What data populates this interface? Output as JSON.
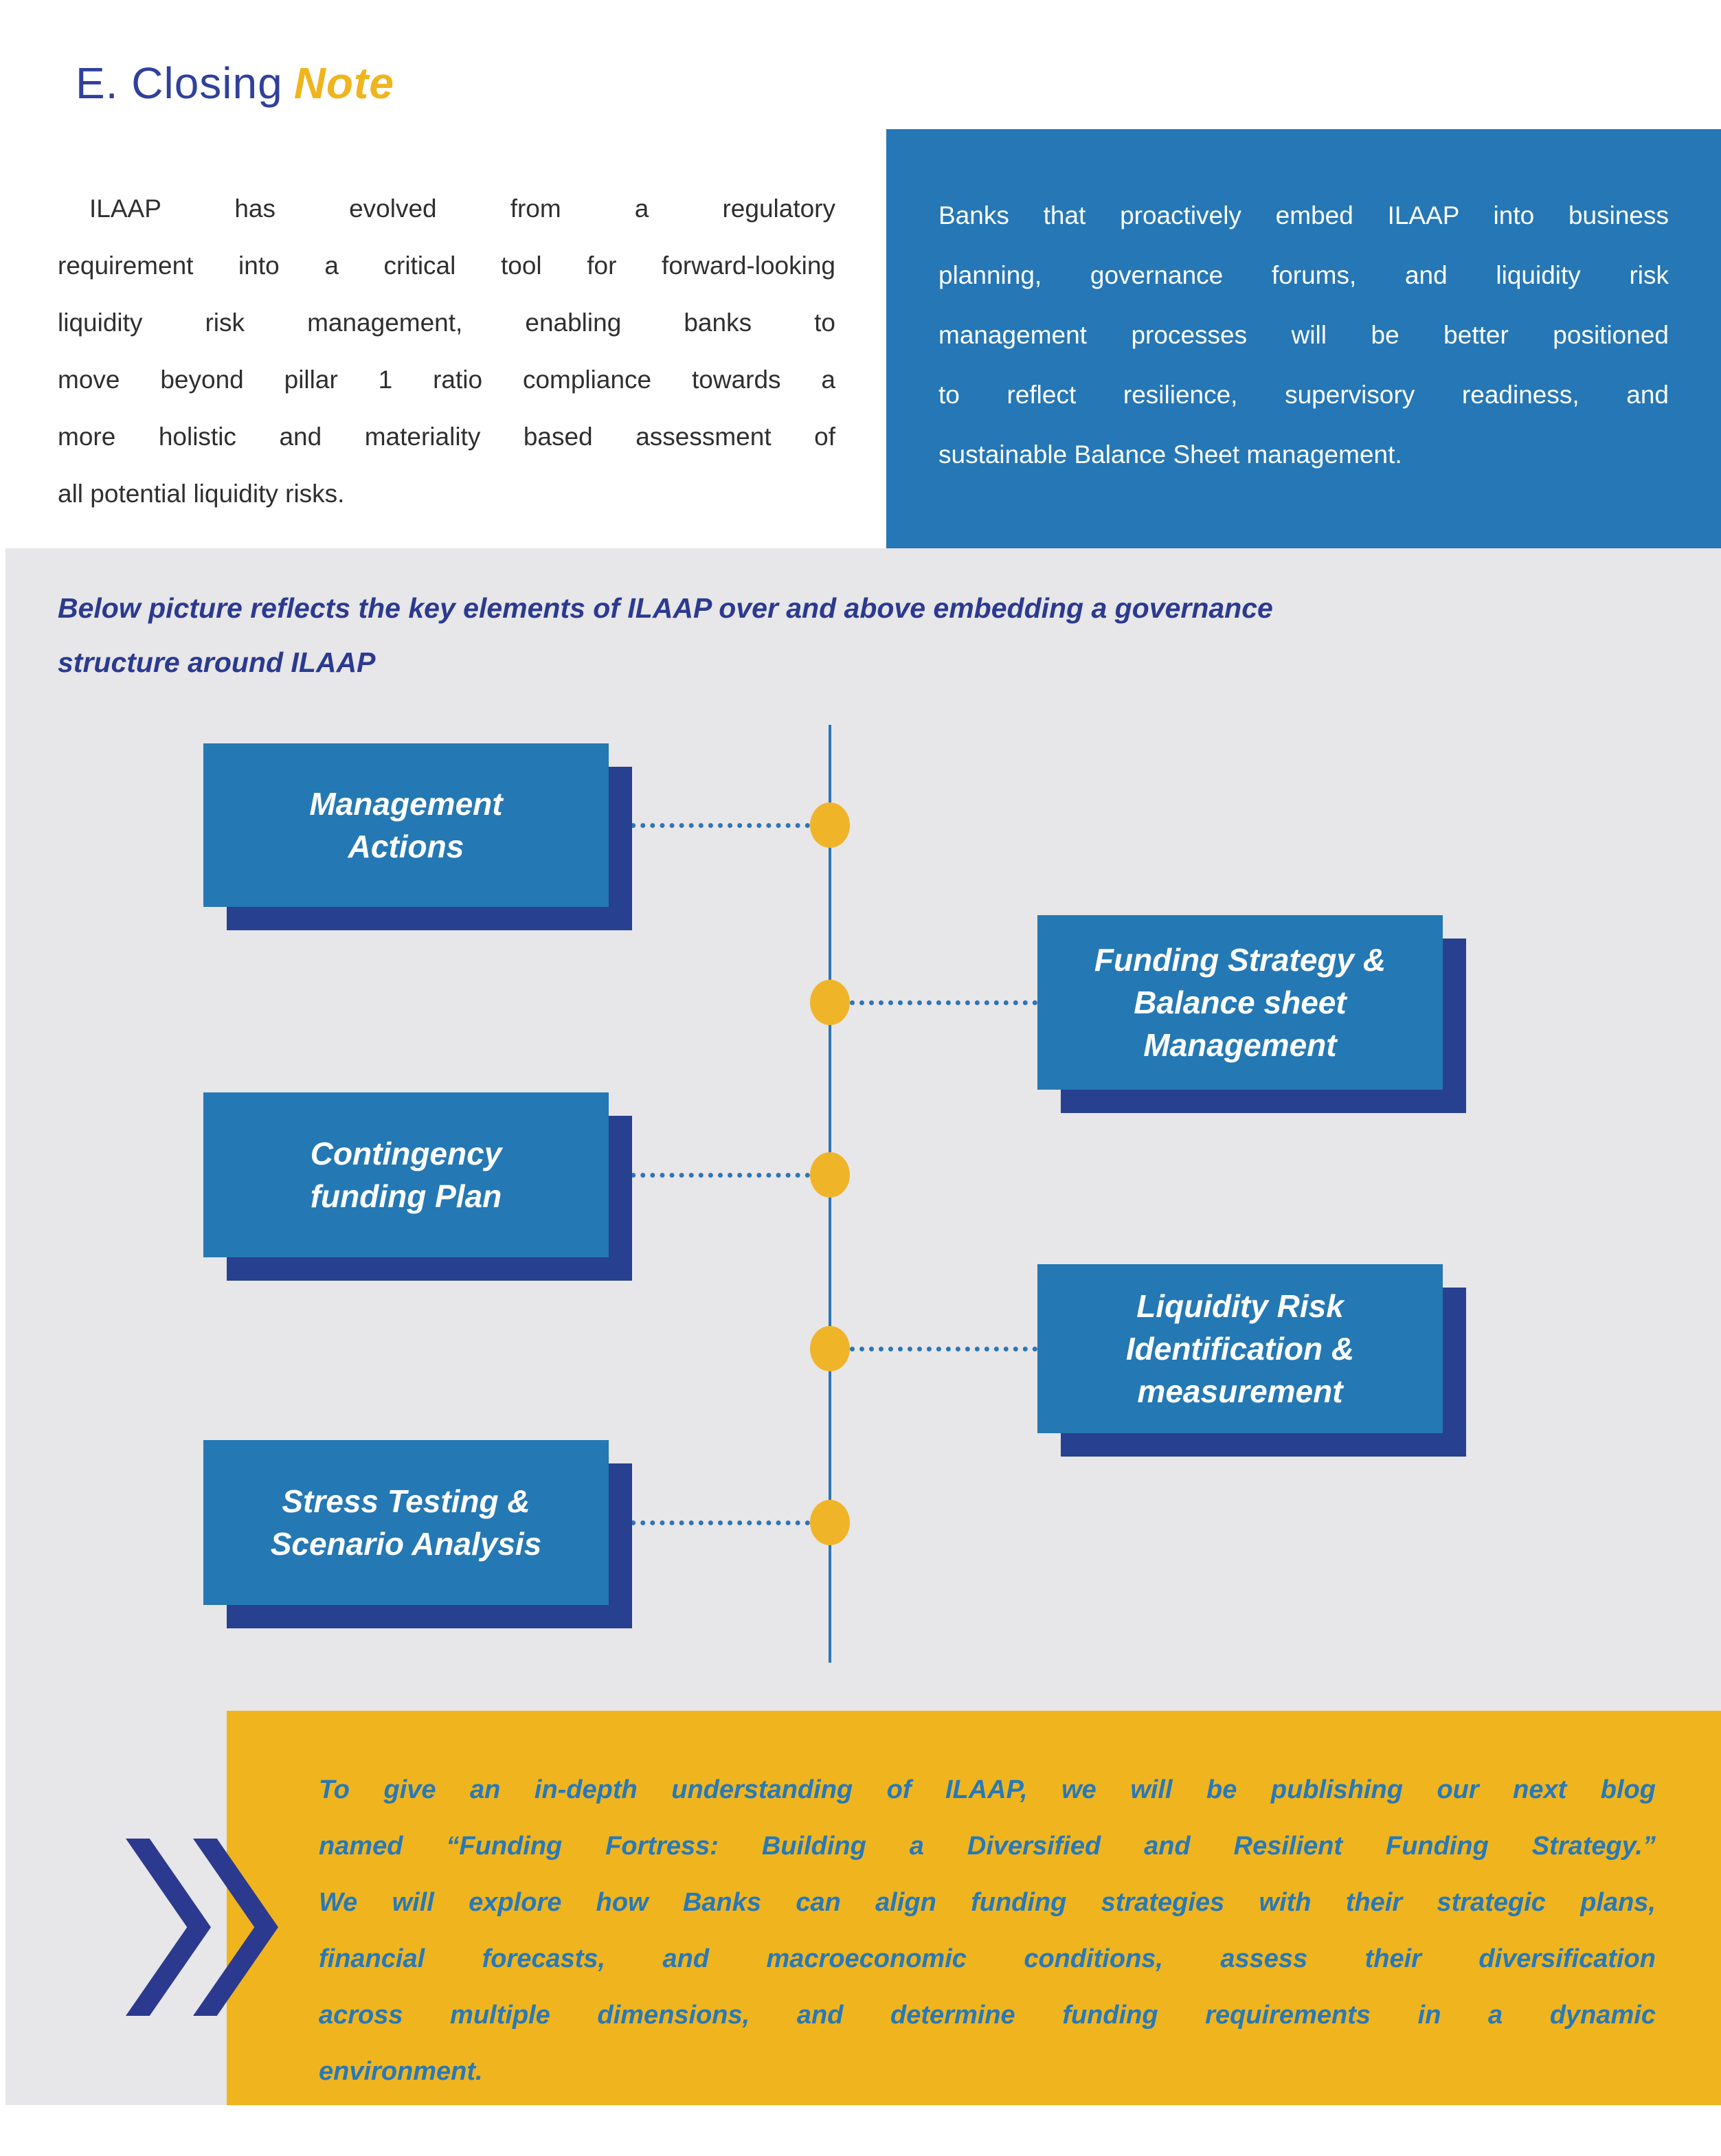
{
  "title": {
    "main": "E. Closing",
    "accent": "Note"
  },
  "intro": {
    "paragraph_lines": "ILAAP has evolved from a regulatory\nrequirement into a critical tool for forward-looking\nliquidity risk management, enabling banks to\nmove beyond pillar 1 ratio compliance towards a\nmore holistic and materiality based assessment of",
    "paragraph_last": "all potential liquidity risks.",
    "callout_lines": "Banks that proactively embed ILAAP into business\nplanning, governance forums, and liquidity risk\nmanagement processes will be better positioned\nto reflect resilience, supervisory readiness, and",
    "callout_last": "sustainable Balance Sheet management."
  },
  "section": {
    "heading": "Below picture reflects the key elements of ILAAP over and above embedding a governance\nstructure around ILAAP"
  },
  "timeline": {
    "items": [
      {
        "label": "Management\nActions",
        "side": "left"
      },
      {
        "label": "Funding Strategy &\nBalance sheet\nManagement",
        "side": "right"
      },
      {
        "label": "Contingency\nfunding Plan",
        "side": "left"
      },
      {
        "label": "Liquidity Risk\nIdentification &\nmeasurement",
        "side": "right"
      },
      {
        "label": "Stress Testing &\nScenario Analysis",
        "side": "left"
      }
    ]
  },
  "footer": {
    "note_lines": "To give an in-depth understanding of ILAAP, we will be publishing our next blog\nnamed “Funding Fortress: Building a Diversified and Resilient Funding Strategy.”\nWe will explore how Banks can align funding strategies with their strategic plans,\nfinancial forecasts, and macroeconomic conditions, assess their diversification\nacross multiple dimensions, and determine funding requirements in a dynamic",
    "note_last": "environment.",
    "chevron_icon": "double-chevron-right"
  },
  "colors": {
    "title_blue": "#30409c",
    "accent_gold": "#f0b41e",
    "callout_blue": "#2577b5",
    "box_blue": "#2478b4",
    "shadow_navy": "#27408f",
    "heading_navy": "#2b3a8f",
    "node_gold": "#f0b429",
    "footer_gold": "#f0b41f",
    "connector_blue": "#2e75b6",
    "section_gray": "#e7e6e8",
    "body_text": "#2f2f2f"
  }
}
